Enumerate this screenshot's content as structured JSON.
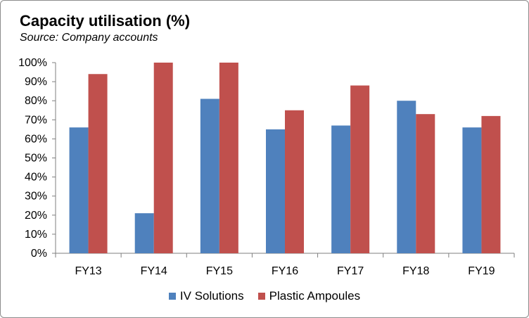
{
  "chart_data": {
    "type": "bar",
    "title": "Capacity utilisation (%)",
    "subtitle": "Source: Company accounts",
    "categories": [
      "FY13",
      "FY14",
      "FY15",
      "FY16",
      "FY17",
      "FY18",
      "FY19"
    ],
    "series": [
      {
        "name": "IV Solutions",
        "color": "#4f81bd",
        "values": [
          66,
          21,
          81,
          65,
          67,
          80,
          66
        ]
      },
      {
        "name": "Plastic Ampoules",
        "color": "#c0504d",
        "values": [
          94,
          100,
          100,
          75,
          88,
          73,
          72
        ]
      }
    ],
    "ylim": [
      0,
      100
    ],
    "yticks": [
      "0%",
      "10%",
      "20%",
      "30%",
      "40%",
      "50%",
      "60%",
      "70%",
      "80%",
      "90%",
      "100%"
    ],
    "grid": false,
    "legend": "bottom"
  }
}
